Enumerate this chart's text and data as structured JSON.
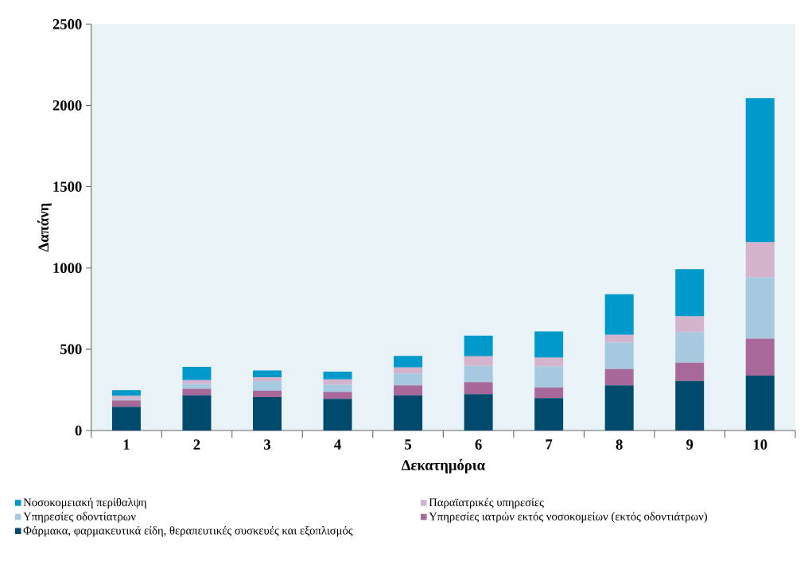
{
  "chart_data": {
    "type": "bar",
    "stacked": true,
    "xlabel": "Δεκατημόρια",
    "ylabel": "Δαπάνη",
    "categories": [
      "1",
      "2",
      "3",
      "4",
      "5",
      "6",
      "7",
      "8",
      "9",
      "10"
    ],
    "series": [
      {
        "name": "Φάρμακα, φαρμακευτικά είδη, θεραπευτικές συσκευές και εξοπλισμός",
        "color": "#004a6e",
        "values": [
          145,
          216,
          205,
          195,
          216,
          224,
          200,
          278,
          305,
          338
        ]
      },
      {
        "name": "Υπηρεσίες ιατρών εκτός νοσοκομείων (εκτός οδοντιάτρων)",
        "color": "#a8689a",
        "values": [
          40,
          41,
          40,
          42,
          62,
          73,
          64,
          100,
          112,
          227
        ]
      },
      {
        "name": "Υπηρεσίες οδοντίατρων",
        "color": "#a6c9df",
        "values": [
          6,
          29,
          57,
          45,
          73,
          101,
          130,
          163,
          188,
          377
        ]
      },
      {
        "name": "Παραϊατρικές υπηρεσίες",
        "color": "#d4b3cc",
        "values": [
          22,
          24,
          26,
          33,
          37,
          58,
          54,
          48,
          98,
          216
        ]
      },
      {
        "name": "Νοσοκομειακή περίθαλψη",
        "color": "#0099cc",
        "values": [
          35,
          81,
          42,
          47,
          71,
          128,
          162,
          249,
          289,
          887
        ]
      }
    ],
    "ylim": [
      0,
      2500
    ],
    "yticks": [
      0,
      500,
      1000,
      1500,
      2000,
      2500
    ],
    "grid": false,
    "legend": "bottom"
  }
}
